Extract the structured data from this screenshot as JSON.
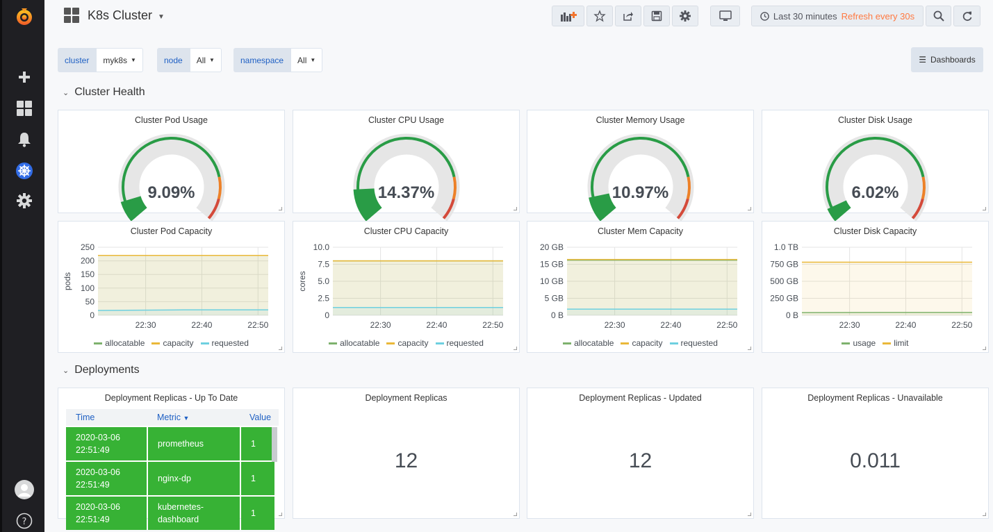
{
  "header": {
    "dashboard_title": "K8s Cluster",
    "time_range_label": "Last 30 minutes",
    "refresh_label": "Refresh every 30s",
    "dashboards_button_label": "Dashboards"
  },
  "variables": [
    {
      "label": "cluster",
      "value": "myk8s"
    },
    {
      "label": "node",
      "value": "All"
    },
    {
      "label": "namespace",
      "value": "All"
    }
  ],
  "rows": {
    "health_title": "Cluster Health",
    "deployments_title": "Deployments"
  },
  "gauges": [
    {
      "title": "Cluster Pod Usage",
      "value": "9.09%",
      "percent": 9.09
    },
    {
      "title": "Cluster CPU Usage",
      "value": "14.37%",
      "percent": 14.37
    },
    {
      "title": "Cluster Memory Usage",
      "value": "10.97%",
      "percent": 10.97
    },
    {
      "title": "Cluster Disk Usage",
      "value": "6.02%",
      "percent": 6.02
    }
  ],
  "chart_data": [
    {
      "type": "line",
      "title": "Cluster Pod Capacity",
      "ylabel": "pods",
      "y_ticks": [
        "250",
        "200",
        "150",
        "100",
        "50",
        "0"
      ],
      "ylim": [
        0,
        250
      ],
      "x_ticks": [
        "22:30",
        "22:40",
        "22:50"
      ],
      "series": [
        {
          "name": "allocatable",
          "color": "#7eb26d",
          "values": [
            220,
            220,
            220
          ]
        },
        {
          "name": "capacity",
          "color": "#eab839",
          "values": [
            220,
            220,
            220
          ]
        },
        {
          "name": "requested",
          "color": "#6ed0e0",
          "values": [
            18,
            20,
            20
          ]
        }
      ]
    },
    {
      "type": "line",
      "title": "Cluster CPU Capacity",
      "ylabel": "cores",
      "y_ticks": [
        "10.0",
        "7.5",
        "5.0",
        "2.5",
        "0"
      ],
      "ylim": [
        0,
        10
      ],
      "x_ticks": [
        "22:30",
        "22:40",
        "22:50"
      ],
      "series": [
        {
          "name": "allocatable",
          "color": "#7eb26d",
          "values": [
            8,
            8,
            8
          ]
        },
        {
          "name": "capacity",
          "color": "#eab839",
          "values": [
            8,
            8,
            8
          ]
        },
        {
          "name": "requested",
          "color": "#6ed0e0",
          "values": [
            1.15,
            1.15,
            1.15
          ]
        }
      ]
    },
    {
      "type": "line",
      "title": "Cluster Mem Capacity",
      "ylabel": "",
      "y_ticks": [
        "20 GB",
        "15 GB",
        "10 GB",
        "5 GB",
        "0 B"
      ],
      "ylim": [
        0,
        20
      ],
      "x_ticks": [
        "22:30",
        "22:40",
        "22:50"
      ],
      "series": [
        {
          "name": "allocatable",
          "color": "#7eb26d",
          "values": [
            16.2,
            16.2,
            16.2
          ]
        },
        {
          "name": "capacity",
          "color": "#eab839",
          "values": [
            16.4,
            16.4,
            16.4
          ]
        },
        {
          "name": "requested",
          "color": "#6ed0e0",
          "values": [
            1.8,
            1.8,
            1.8
          ]
        }
      ]
    },
    {
      "type": "line",
      "title": "Cluster Disk Capacity",
      "ylabel": "",
      "y_ticks": [
        "1.0 TB",
        "750 GB",
        "500 GB",
        "250 GB",
        "0 B"
      ],
      "ylim": [
        0,
        1000
      ],
      "x_ticks": [
        "22:30",
        "22:40",
        "22:50"
      ],
      "series": [
        {
          "name": "usage",
          "color": "#7eb26d",
          "values": [
            40,
            42,
            42
          ]
        },
        {
          "name": "limit",
          "color": "#eab839",
          "values": [
            780,
            780,
            780
          ]
        }
      ]
    }
  ],
  "table": {
    "title": "Deployment Replicas - Up To Date",
    "headers": {
      "time": "Time",
      "metric": "Metric",
      "value": "Value"
    },
    "rows": [
      {
        "time": "2020-03-06 22:51:49",
        "metric": "prometheus",
        "value": "1"
      },
      {
        "time": "2020-03-06 22:51:49",
        "metric": "nginx-dp",
        "value": "1"
      },
      {
        "time": "2020-03-06 22:51:49",
        "metric": "kubernetes-dashboard",
        "value": "1"
      }
    ]
  },
  "stats": [
    {
      "title": "Deployment Replicas",
      "value": "12"
    },
    {
      "title": "Deployment Replicas - Updated",
      "value": "12"
    },
    {
      "title": "Deployment Replicas - Unavailable",
      "value": "0.011"
    }
  ]
}
